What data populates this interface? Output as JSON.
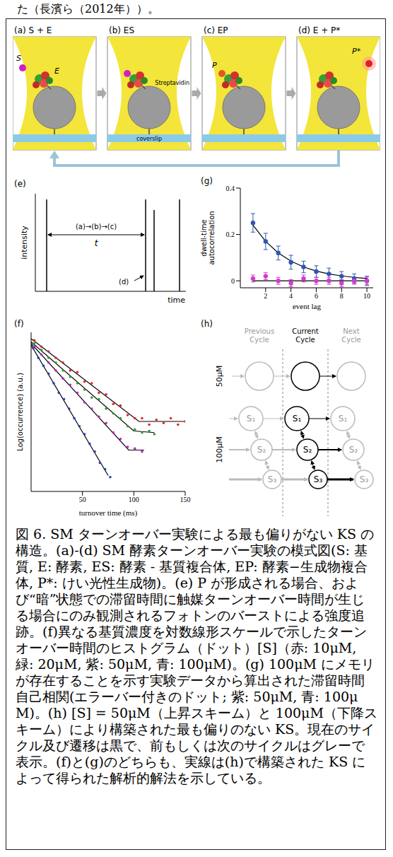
{
  "preceding_text": "た（長濱ら（2012年））。",
  "schematic": [
    {
      "letter": "(a)",
      "title": "S + E",
      "labels": {
        "substrate": "S",
        "enzyme": "E"
      }
    },
    {
      "letter": "(b)",
      "title": "ES",
      "labels": {
        "bead": "Streptavidin",
        "surface": "coverslip"
      }
    },
    {
      "letter": "(c)",
      "title": "EP",
      "labels": {
        "product": "P"
      }
    },
    {
      "letter": "(d)",
      "title": "E + P*",
      "labels": {
        "product": "P*"
      }
    }
  ],
  "trace": {
    "letter": "(e)",
    "y_label": "intensity",
    "x_label": "time",
    "interval_label": "(a)→(b)→(c)",
    "interval_symbol": "t",
    "release_label": "(d)"
  },
  "chart_data": [
    {
      "type": "scatter",
      "title": "(f)",
      "x_label": "turnover time (ms)",
      "y_label": "Log(occurrence) (a.u.)",
      "xlim": [
        0,
        150
      ],
      "xticks": [
        50,
        100,
        150
      ],
      "ylim": [
        0,
        10
      ],
      "tick_labels": "x",
      "series": [
        {
          "color": "#e3262a",
          "x": [
            3,
            10,
            17,
            24,
            31,
            38,
            45,
            52,
            59,
            66,
            73,
            80,
            87,
            94,
            101,
            108,
            115,
            122,
            129,
            136,
            143,
            150
          ],
          "values": [
            9.5,
            9.1,
            8.8,
            8.4,
            8.1,
            7.6,
            7.5,
            6.9,
            6.8,
            6.2,
            6.1,
            5.5,
            5.4,
            4.8,
            4.6,
            4.6,
            4.2,
            4.5,
            4.3,
            4.6,
            4.2,
            4.4
          ],
          "fit": {
            "x": [
              0,
              105,
              150
            ],
            "values": [
              9.6,
              4.4,
              4.4
            ]
          }
        },
        {
          "color": "#2ea02c",
          "x": [
            3,
            10,
            17,
            24,
            31,
            38,
            45,
            52,
            59,
            66,
            73,
            80,
            87,
            94,
            101,
            108,
            115,
            120
          ],
          "values": [
            9.3,
            8.9,
            8.4,
            8.1,
            7.6,
            7.2,
            6.8,
            6.4,
            5.9,
            5.8,
            5.2,
            4.9,
            4.6,
            4.1,
            3.9,
            3.7,
            3.8,
            3.6
          ],
          "fit": {
            "x": [
              0,
              100,
              120
            ],
            "values": [
              9.4,
              3.8,
              3.7
            ]
          }
        },
        {
          "color": "#c21fbf",
          "x": [
            3,
            10,
            17,
            24,
            31,
            38,
            45,
            52,
            59,
            66,
            73,
            80,
            87,
            94,
            101,
            108
          ],
          "values": [
            9.1,
            8.6,
            8.1,
            7.6,
            7.1,
            6.7,
            6.2,
            5.6,
            5.2,
            4.7,
            4.3,
            3.7,
            3.3,
            2.8,
            2.7,
            2.5
          ],
          "fit": {
            "x": [
              0,
              95,
              110
            ],
            "values": [
              9.3,
              2.6,
              2.6
            ]
          }
        },
        {
          "color": "#2340b8",
          "x": [
            2,
            7,
            12,
            17,
            22,
            27,
            32,
            37,
            42,
            47,
            52,
            57,
            62,
            67,
            72,
            77
          ],
          "values": [
            9.0,
            8.4,
            7.9,
            7.4,
            6.8,
            6.2,
            5.8,
            5.2,
            4.6,
            4.1,
            3.6,
            3.0,
            2.5,
            1.8,
            1.4,
            0.9
          ],
          "fit": {
            "x": [
              0,
              75
            ],
            "values": [
              9.2,
              1.0
            ]
          }
        }
      ]
    },
    {
      "type": "scatter",
      "title": "(g)",
      "x_label": "event lag",
      "y_label": "dwell-time autocorrelation",
      "xlim": [
        0,
        10.5
      ],
      "xticks": [
        2,
        4,
        6,
        8,
        10
      ],
      "ylim": [
        -0.03,
        0.4
      ],
      "yticks": [
        0,
        0.2,
        0.4
      ],
      "series": [
        {
          "color": "#2f55b5",
          "x": [
            1,
            2,
            3,
            4,
            5,
            6,
            7,
            8,
            9,
            10
          ],
          "values": [
            0.25,
            0.17,
            0.12,
            0.08,
            0.06,
            0.04,
            0.03,
            0.02,
            0.01,
            0.0
          ],
          "errors": [
            0.04,
            0.035,
            0.03,
            0.03,
            0.025,
            0.025,
            0.025,
            0.02,
            0.02,
            0.02
          ],
          "fit": {
            "x": [
              1,
              2,
              3,
              4,
              5,
              6,
              7,
              8,
              9,
              10
            ],
            "values": [
              0.24,
              0.17,
              0.12,
              0.085,
              0.06,
              0.042,
              0.03,
              0.021,
              0.015,
              0.01
            ]
          }
        },
        {
          "color": "#d23ccf",
          "x": [
            1,
            2,
            3,
            4,
            5,
            6,
            7,
            8,
            9,
            10
          ],
          "values": [
            0.01,
            0.02,
            0.0,
            -0.01,
            0.01,
            0.0,
            0.0,
            -0.01,
            0.0,
            0.0
          ],
          "errors": [
            0.015,
            0.015,
            0.015,
            0.015,
            0.015,
            0.015,
            0.015,
            0.015,
            0.015,
            0.015
          ],
          "fit": {
            "x": [
              1,
              10
            ],
            "values": [
              0.0,
              0.0
            ]
          }
        }
      ]
    }
  ],
  "scheme": {
    "letter": "(h)",
    "columns": [
      "Previous Cycle",
      "Current Cycle",
      "Next Cycle"
    ],
    "rows": [
      {
        "label": "50μM"
      },
      {
        "label": "100μM",
        "states": [
          "S₁",
          "S₂",
          "S₃"
        ]
      }
    ]
  },
  "caption": "図 6. SM ターンオーバー実験による最も偏りがない KS の構造。(a)-(d) SM 酵素ターンオーバー実験の模式図(S: 基質, E: 酵素, ES: 酵素 - 基質複合体, EP: 酵素−生成物複合体, P*: けい光性生成物)。(e) P が形成される場合、および“暗”状態での滞留時間に触媒ターンオーバー時間が生じる場合にのみ観測されるフォトンのバーストによる強度追跡。(f)異なる基質濃度を対数線形スケールで示したターンオーバー時間のヒストグラム（ドット）[S]（赤: 10μM, 緑: 20μM, 紫: 50μM, 青: 100μM)。(g) 100μM にメモリが存在することを示す実験データから算出された滞留時間自己相関(エラーバー付きのドット; 紫: 50μM, 青: 100μM)。(h) [S] = 50μM（上昇スキーム）と 100μM（下降スキーム）により構築された最も偏りのない KS。現在のサイクル及び遷移は黒で、前もしくは次のサイクルはグレーで表示。(f)と(g)のどちらも、実線は(h)で構築された KS によって得られた解析的解法を示している。"
}
